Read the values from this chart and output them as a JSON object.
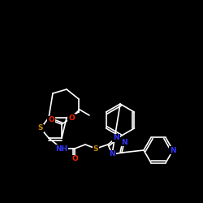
{
  "bg_color": "#000000",
  "bond_color": "#ffffff",
  "atom_colors": {
    "N": "#3333ff",
    "O": "#ff2200",
    "S": "#cc8800"
  },
  "figsize": [
    2.5,
    2.5
  ],
  "dpi": 100
}
